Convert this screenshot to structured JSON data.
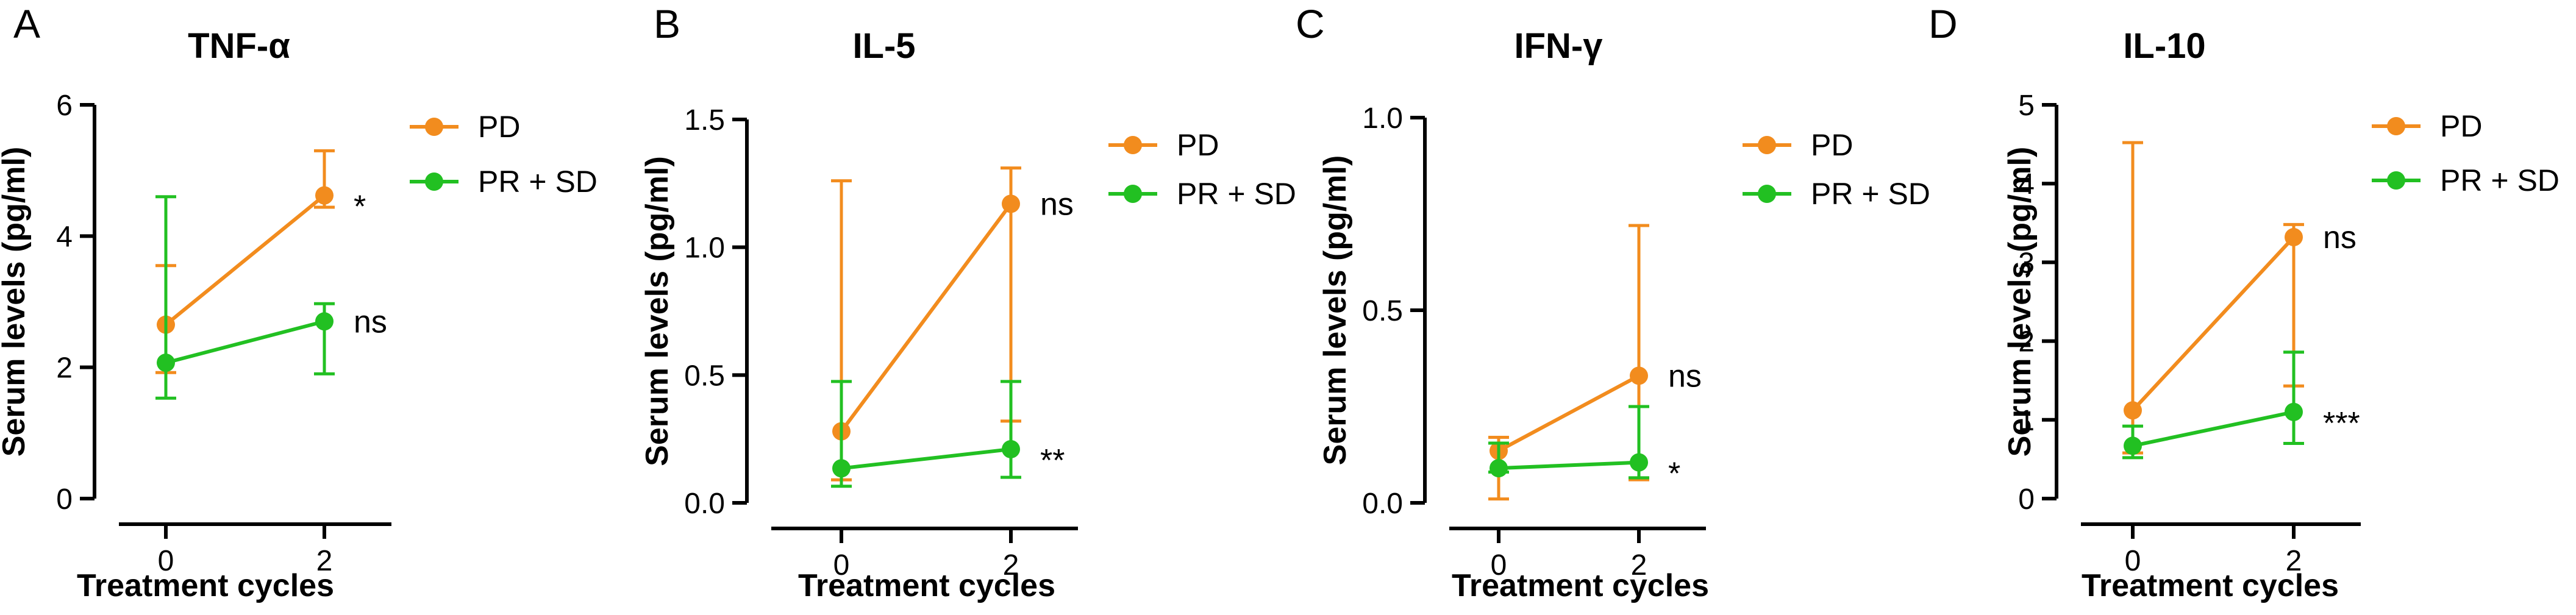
{
  "chart_data": [
    {
      "type": "line",
      "panel": "A",
      "title": "TNF-α",
      "xlabel": "Treatment cycles",
      "ylabel": "Serum levels (pg/ml)",
      "ylim": [
        0,
        6
      ],
      "yticks": [
        0,
        2,
        4,
        6
      ],
      "ytick_labels": [
        "0",
        "2",
        "4",
        "6"
      ],
      "categories": [
        "0",
        "2"
      ],
      "legend_position": "top-right",
      "series": [
        {
          "name": "PD",
          "color": "#F28C1E",
          "values": [
            2.65,
            4.62
          ],
          "err_low": [
            1.92,
            4.44
          ],
          "err_high": [
            3.55,
            5.3
          ],
          "sig": "*"
        },
        {
          "name": "PR + SD",
          "color": "#22C022",
          "values": [
            2.07,
            2.7
          ],
          "err_low": [
            1.53,
            1.9
          ],
          "err_high": [
            4.6,
            2.97
          ],
          "sig": "ns"
        }
      ]
    },
    {
      "type": "line",
      "panel": "B",
      "title": "IL-5",
      "xlabel": "Treatment cycles",
      "ylabel": "Serum levels (pg/ml)",
      "ylim": [
        0,
        1.5
      ],
      "yticks": [
        0,
        0.5,
        1.0,
        1.5
      ],
      "ytick_labels": [
        "0.0",
        "0.5",
        "1.0",
        "1.5"
      ],
      "categories": [
        "0",
        "2"
      ],
      "legend_position": "top-right",
      "series": [
        {
          "name": "PD",
          "color": "#F28C1E",
          "values": [
            0.28,
            1.17
          ],
          "err_low": [
            0.09,
            0.32
          ],
          "err_high": [
            1.26,
            1.31
          ],
          "sig": "ns"
        },
        {
          "name": "PR + SD",
          "color": "#22C022",
          "values": [
            0.135,
            0.21
          ],
          "err_low": [
            0.065,
            0.1
          ],
          "err_high": [
            0.475,
            0.475
          ],
          "sig": "**"
        }
      ]
    },
    {
      "type": "line",
      "panel": "C",
      "title": "IFN-γ",
      "xlabel": "Treatment cycles",
      "ylabel": "Serum levels (pg/ml)",
      "ylim": [
        0,
        1.0
      ],
      "yticks": [
        0,
        0.5,
        1.0
      ],
      "ytick_labels": [
        "0.0",
        "0.5",
        "1.0"
      ],
      "categories": [
        "0",
        "2"
      ],
      "legend_position": "top-right",
      "series": [
        {
          "name": "PD",
          "color": "#F28C1E",
          "values": [
            0.135,
            0.33
          ],
          "err_low": [
            0.01,
            0.06
          ],
          "err_high": [
            0.17,
            0.72
          ],
          "sig": "ns"
        },
        {
          "name": "PR + SD",
          "color": "#22C022",
          "values": [
            0.09,
            0.105
          ],
          "err_low": [
            0.08,
            0.065
          ],
          "err_high": [
            0.155,
            0.25
          ],
          "sig": "*"
        }
      ]
    },
    {
      "type": "line",
      "panel": "D",
      "title": "IL-10",
      "xlabel": "Treatment cycles",
      "ylabel": "Serum levels (pg/ml)",
      "ylim": [
        0,
        5
      ],
      "yticks": [
        0,
        1,
        2,
        3,
        4,
        5
      ],
      "ytick_labels": [
        "0",
        "1",
        "2",
        "3",
        "4",
        "5"
      ],
      "categories": [
        "0",
        "2"
      ],
      "legend_position": "top-right",
      "series": [
        {
          "name": "PD",
          "color": "#F28C1E",
          "values": [
            1.12,
            3.32
          ],
          "err_low": [
            0.58,
            1.43
          ],
          "err_high": [
            4.52,
            3.48
          ],
          "sig": "ns"
        },
        {
          "name": "PR + SD",
          "color": "#22C022",
          "values": [
            0.67,
            1.1
          ],
          "err_low": [
            0.52,
            0.7
          ],
          "err_high": [
            0.92,
            1.86
          ],
          "sig": "***"
        }
      ]
    }
  ]
}
